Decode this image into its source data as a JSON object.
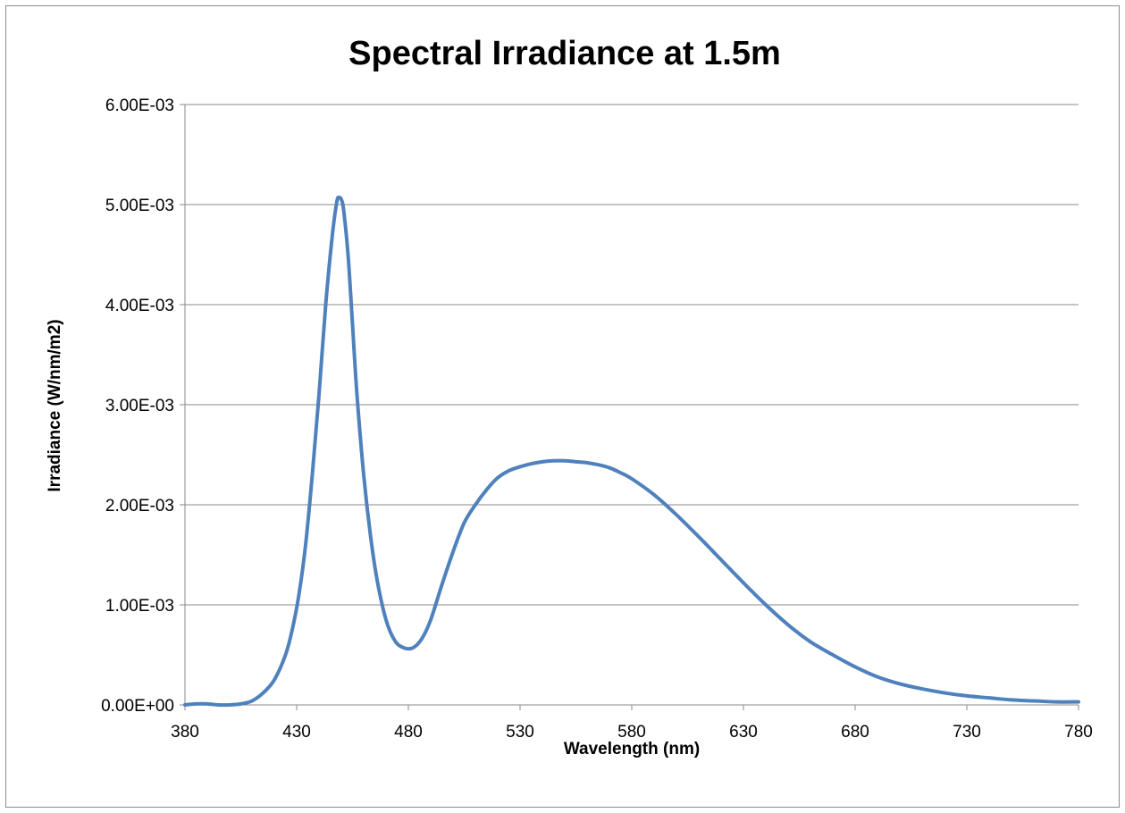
{
  "chart_data": {
    "type": "line",
    "title": "Spectral Irradiance at 1.5m",
    "xlabel": "Wavelength (nm)",
    "ylabel": "Irradiance (W/nm/m2)",
    "xlim": [
      380,
      780
    ],
    "ylim": [
      0,
      0.006
    ],
    "x_ticks": [
      380,
      430,
      480,
      530,
      580,
      630,
      680,
      730,
      780
    ],
    "x_tick_labels": [
      "380",
      "430",
      "480",
      "530",
      "580",
      "630",
      "680",
      "730",
      "780"
    ],
    "y_ticks": [
      0,
      0.001,
      0.002,
      0.003,
      0.004,
      0.005,
      0.006
    ],
    "y_tick_labels": [
      "0.00E+00",
      "1.00E-03",
      "2.00E-03",
      "3.00E-03",
      "4.00E-03",
      "5.00E-03",
      "6.00E-03"
    ],
    "grid": "horizontal",
    "legend": "none",
    "series": [
      {
        "color": "#4f81bd",
        "x": [
          380,
          385,
          390,
          395,
          400,
          405,
          410,
          415,
          420,
          425,
          428,
          431,
          434,
          437,
          440,
          443,
          446,
          448,
          449,
          450,
          451,
          453,
          455,
          457,
          460,
          463,
          466,
          470,
          474,
          478,
          482,
          486,
          490,
          495,
          500,
          505,
          510,
          515,
          520,
          525,
          530,
          535,
          540,
          545,
          550,
          555,
          560,
          565,
          570,
          575,
          580,
          590,
          600,
          610,
          620,
          630,
          640,
          650,
          660,
          670,
          680,
          690,
          700,
          710,
          720,
          730,
          740,
          750,
          760,
          770,
          780
        ],
        "y": [
          0.0,
          1e-05,
          1e-05,
          0.0,
          0.0,
          1e-05,
          4e-05,
          0.00012,
          0.00025,
          0.0005,
          0.00075,
          0.0011,
          0.0016,
          0.0023,
          0.0031,
          0.004,
          0.0047,
          0.00503,
          0.00507,
          0.00505,
          0.00495,
          0.0045,
          0.0038,
          0.0031,
          0.0023,
          0.0017,
          0.00125,
          0.00085,
          0.00064,
          0.00057,
          0.00057,
          0.00066,
          0.00085,
          0.0012,
          0.00153,
          0.00182,
          0.002,
          0.00215,
          0.00227,
          0.00234,
          0.00238,
          0.00241,
          0.00243,
          0.00244,
          0.00244,
          0.00243,
          0.00242,
          0.0024,
          0.00237,
          0.00232,
          0.00226,
          0.0021,
          0.0019,
          0.00168,
          0.00145,
          0.00122,
          0.001,
          0.0008,
          0.00063,
          0.0005,
          0.00038,
          0.00028,
          0.00021,
          0.00016,
          0.00012,
          9e-05,
          7e-05,
          5e-05,
          4e-05,
          3e-05,
          3e-05
        ]
      }
    ]
  }
}
